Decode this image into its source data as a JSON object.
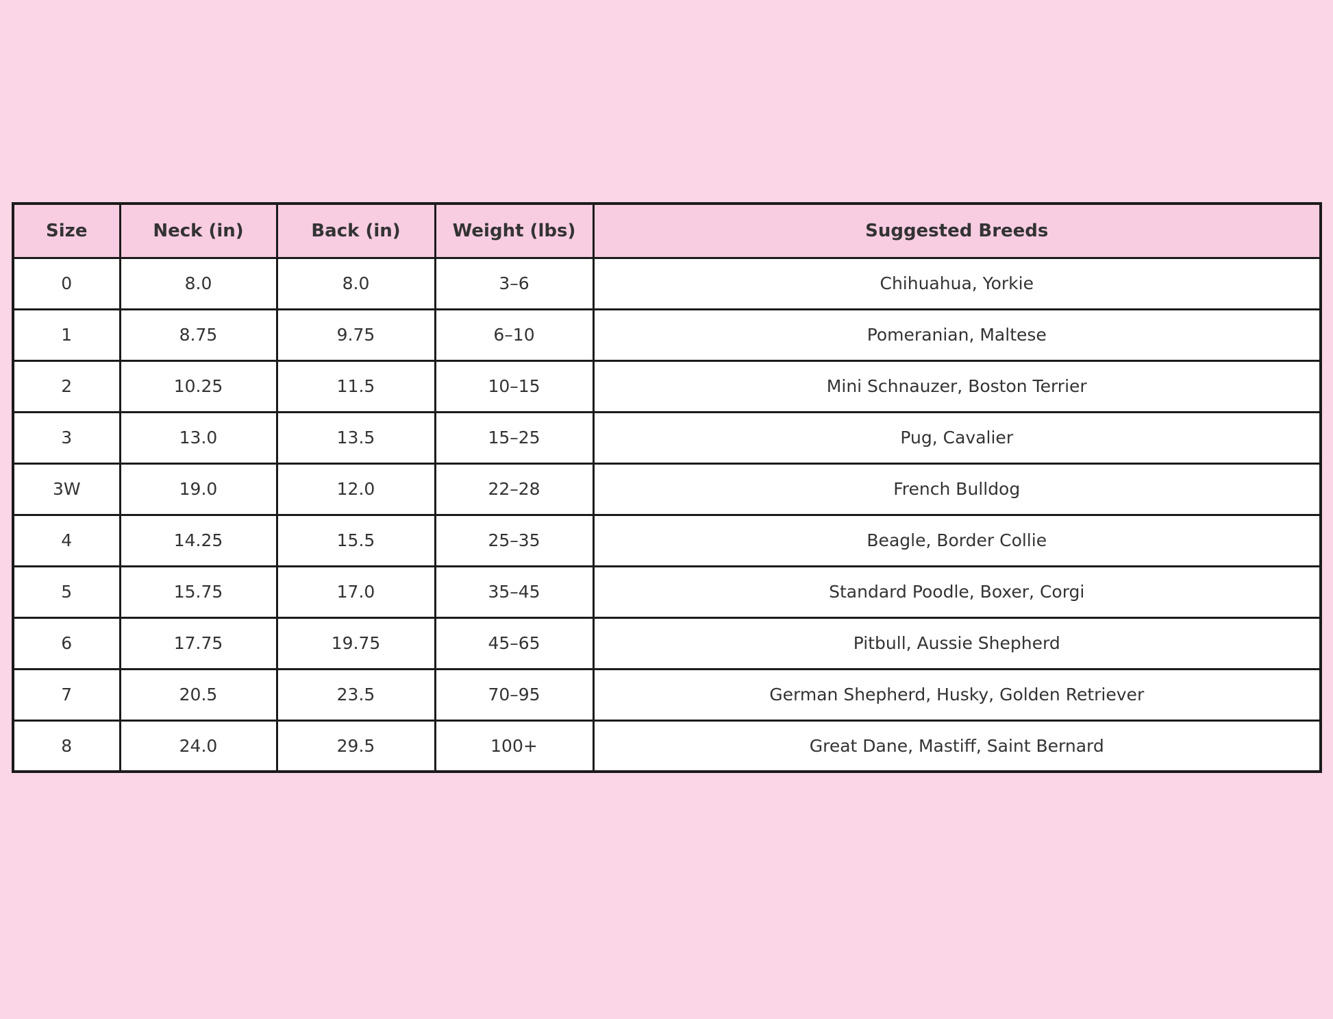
{
  "style": {
    "page_bg": "#fbd6e6",
    "header_bg": "#f8cde1",
    "border_color": "#1b1b1b",
    "text_color": "#333333"
  },
  "chart_data": {
    "type": "table",
    "title": "",
    "columns": [
      "Size",
      "Neck (in)",
      "Back (in)",
      "Weight (lbs)",
      "Suggested Breeds"
    ],
    "rows": [
      [
        "0",
        "8.0",
        "8.0",
        "3–6",
        "Chihuahua, Yorkie"
      ],
      [
        "1",
        "8.75",
        "9.75",
        "6–10",
        "Pomeranian, Maltese"
      ],
      [
        "2",
        "10.25",
        "11.5",
        "10–15",
        "Mini Schnauzer, Boston Terrier"
      ],
      [
        "3",
        "13.0",
        "13.5",
        "15–25",
        "Pug, Cavalier"
      ],
      [
        "3W",
        "19.0",
        "12.0",
        "22–28",
        "French Bulldog"
      ],
      [
        "4",
        "14.25",
        "15.5",
        "25–35",
        "Beagle, Border Collie"
      ],
      [
        "5",
        "15.75",
        "17.0",
        "35–45",
        "Standard Poodle, Boxer, Corgi"
      ],
      [
        "6",
        "17.75",
        "19.75",
        "45–65",
        "Pitbull, Aussie Shepherd"
      ],
      [
        "7",
        "20.5",
        "23.5",
        "70–95",
        "German Shepherd, Husky, Golden Retriever"
      ],
      [
        "8",
        "24.0",
        "29.5",
        "100+",
        "Great Dane, Mastiff, Saint Bernard"
      ]
    ],
    "layout": {
      "header_position": "top",
      "grid": true,
      "cell_alignment": "center"
    }
  }
}
